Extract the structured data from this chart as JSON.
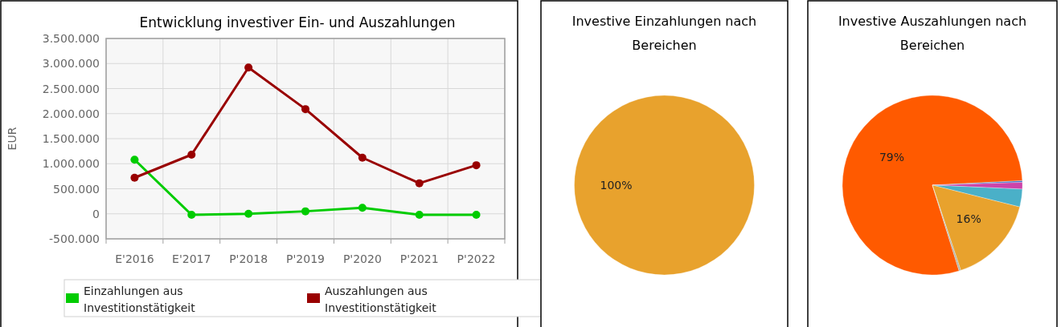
{
  "chart_data": [
    {
      "type": "line",
      "title": "Entwicklung investiver Ein- und Auszahlungen",
      "ylabel": "EUR",
      "categories": [
        "E'2016",
        "E'2017",
        "P'2018",
        "P'2019",
        "P'2020",
        "P'2021",
        "P'2022"
      ],
      "series": [
        {
          "name": "Einzahlungen aus Investitionstätigkeit",
          "color": "#00cc00",
          "values": [
            1080000,
            -20000,
            0,
            50000,
            120000,
            -20000,
            -20000
          ]
        },
        {
          "name": "Auszahlungen aus Investitionstätigkeit",
          "color": "#990000",
          "values": [
            720000,
            1180000,
            2920000,
            2090000,
            1120000,
            610000,
            970000
          ]
        }
      ],
      "ylim": [
        -500000,
        3500000
      ],
      "yticks": [
        {
          "value": -500000,
          "label": "-500.000"
        },
        {
          "value": 0,
          "label": "0"
        },
        {
          "value": 500000,
          "label": "500.000"
        },
        {
          "value": 1000000,
          "label": "1.000.000"
        },
        {
          "value": 1500000,
          "label": "1.500.000"
        },
        {
          "value": 2000000,
          "label": "2.000.000"
        },
        {
          "value": 2500000,
          "label": "2.500.000"
        },
        {
          "value": 3000000,
          "label": "3.000.000"
        },
        {
          "value": 3500000,
          "label": "3.500.000"
        }
      ],
      "grid": true,
      "legend": "bottom",
      "marker": "circle",
      "line_style": "solid"
    },
    {
      "type": "pie",
      "title": "Investive Einzahlungen nach Bereichen",
      "categories": [
        null
      ],
      "values": [
        100
      ],
      "colors": [
        "#e8a22d"
      ],
      "value_labels": [
        "100%"
      ]
    },
    {
      "type": "pie",
      "title": "Investive Auszahlungen nach Bereichen",
      "categories": [
        null,
        null,
        null,
        null,
        null,
        null
      ],
      "values": [
        79,
        0.3,
        1.2,
        3.2,
        16,
        0.3
      ],
      "colors": [
        "#ff5a00",
        "#3a6fc8",
        "#cc44aa",
        "#4ab0c8",
        "#e8a22d",
        "#b0b0a0"
      ],
      "value_labels": [
        "79%",
        null,
        null,
        null,
        "16%",
        null
      ]
    }
  ]
}
